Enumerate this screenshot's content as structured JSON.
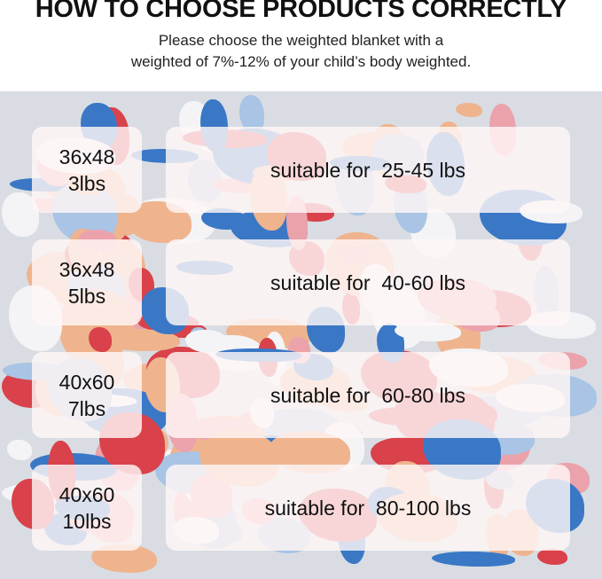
{
  "header": {
    "title": "HOW TO CHOOSE PRODUCTS CORRECTLY",
    "subtitle_line1": "Please choose the weighted blanket with a",
    "subtitle_line2": "weighted of 7%-12% of your child’s body weighted."
  },
  "rows": [
    {
      "size": "36x48",
      "weight": "3lbs",
      "range": "suitable for  25-45 lbs"
    },
    {
      "size": "36x48",
      "weight": "5lbs",
      "range": "suitable for  40-60 lbs"
    },
    {
      "size": "40x60",
      "weight": "7lbs",
      "range": "suitable for  60-80 lbs"
    },
    {
      "size": "40x60",
      "weight": "10lbs",
      "range": "suitable for  80-100 lbs"
    }
  ],
  "colors": {
    "red": "#d9424a",
    "blue": "#3a78c6",
    "peach": "#efb48e",
    "pink": "#eba2ab",
    "grey": "#d9dde3"
  }
}
